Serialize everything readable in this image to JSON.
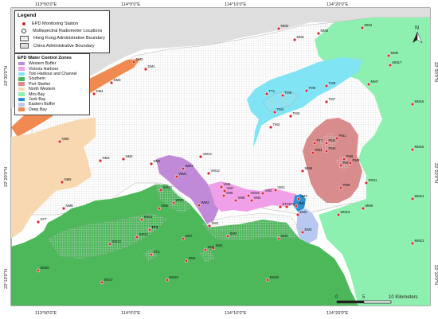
{
  "legend": {
    "title": "Legend",
    "items": [
      {
        "label": "EPD Monitoring Station",
        "symbol": "red-dot"
      },
      {
        "label": "Multispectral Radiometer Locations",
        "symbol": "white-ring"
      },
      {
        "label": "Hong Kong Administrative Boundary",
        "symbol": "hatched-box"
      },
      {
        "label": "China Administrative Boundary",
        "symbol": "grey-box"
      }
    ]
  },
  "zones_legend": {
    "title": "EPD Water Control Zones",
    "zones": [
      {
        "label": "Western Buffer",
        "color": "#c08ad8"
      },
      {
        "label": "Victoria Harbour",
        "color": "#f0a0e8"
      },
      {
        "label": "Tolo Harbour and Channel",
        "color": "#80e4f4"
      },
      {
        "label": "Southern",
        "color": "#4cb85a"
      },
      {
        "label": "Port Shelter",
        "color": "#d98c8c"
      },
      {
        "label": "North Western",
        "color": "#f8d8b0"
      },
      {
        "label": "Mirs Bay",
        "color": "#8df0b0"
      },
      {
        "label": "Junk Bay",
        "color": "#2f8fd0"
      },
      {
        "label": "Eastern Buffer",
        "color": "#b8c8f0"
      },
      {
        "label": "Deep Bay",
        "color": "#f08a50"
      }
    ]
  },
  "colors": {
    "station": "#d8232a",
    "land": "#ffffff",
    "grid": "#d6d6d6",
    "china": "#dedede"
  },
  "axes": {
    "top": [
      "113°50'0\"E",
      "114°0'0\"E",
      "114°10'0\"E",
      "114°20'0\"E"
    ],
    "bottom": [
      "113°50'0\"E",
      "114°0'0\"E",
      "114°10'0\"E",
      "114°20'0\"E"
    ],
    "left": [
      "22°30'0\"N",
      "22°20'0\"N",
      "22°10'0\"N"
    ],
    "right": [
      "22°30'0\"N",
      "22°20'0\"N",
      "22°10'0\"N"
    ]
  },
  "north_arrow": "N",
  "scale_bar": {
    "labels": [
      "0",
      "5",
      "10 Kilometers"
    ]
  },
  "stations": [
    {
      "label": "DM1"
    },
    {
      "label": "DM2"
    },
    {
      "label": "DM3"
    },
    {
      "label": "DM4"
    },
    {
      "label": "DM5"
    },
    {
      "label": "NM1"
    },
    {
      "label": "NM2"
    },
    {
      "label": "NM3"
    },
    {
      "label": "NM5"
    },
    {
      "label": "NM6"
    },
    {
      "label": "NM8"
    },
    {
      "label": "NT7"
    },
    {
      "label": "MM1"
    },
    {
      "label": "MM2"
    },
    {
      "label": "MM3"
    },
    {
      "label": "MM4"
    },
    {
      "label": "MM5"
    },
    {
      "label": "MM6"
    },
    {
      "label": "MM7"
    },
    {
      "label": "MM8"
    },
    {
      "label": "MM13"
    },
    {
      "label": "MM14"
    },
    {
      "label": "MM15"
    },
    {
      "label": "MM16"
    },
    {
      "label": "MM17"
    },
    {
      "label": "MM19"
    },
    {
      "label": "TM2"
    },
    {
      "label": "TM3"
    },
    {
      "label": "TM4"
    },
    {
      "label": "TM6"
    },
    {
      "label": "TM7"
    },
    {
      "label": "TM8"
    },
    {
      "label": "TT1"
    },
    {
      "label": "TT3"
    },
    {
      "label": "TM5"
    },
    {
      "label": "PM1"
    },
    {
      "label": "PM2"
    },
    {
      "label": "PM3"
    },
    {
      "label": "PM4"
    },
    {
      "label": "PM6"
    },
    {
      "label": "PM7"
    },
    {
      "label": "PM8"
    },
    {
      "label": "PM9"
    },
    {
      "label": "PM11"
    },
    {
      "label": "PT7"
    },
    {
      "label": "WM1"
    },
    {
      "label": "WM2"
    },
    {
      "label": "WM3"
    },
    {
      "label": "WM4"
    },
    {
      "label": "VM1"
    },
    {
      "label": "VM2"
    },
    {
      "label": "VM4"
    },
    {
      "label": "VM5"
    },
    {
      "label": "VM6"
    },
    {
      "label": "VM7"
    },
    {
      "label": "VM8"
    },
    {
      "label": "VM12"
    },
    {
      "label": "VM14"
    },
    {
      "label": "VM15"
    },
    {
      "label": "JM3"
    },
    {
      "label": "JM4"
    },
    {
      "label": "ET1"
    },
    {
      "label": "ET2"
    },
    {
      "label": "EM2"
    },
    {
      "label": "EM3"
    },
    {
      "label": "SM1"
    },
    {
      "label": "SM2"
    },
    {
      "label": "SM3"
    },
    {
      "label": "SM4"
    },
    {
      "label": "SM5"
    },
    {
      "label": "SM6"
    },
    {
      "label": "SM7"
    },
    {
      "label": "SM9"
    },
    {
      "label": "SM10"
    },
    {
      "label": "SM11"
    },
    {
      "label": "SM12"
    },
    {
      "label": "SM13"
    },
    {
      "label": "SM17"
    },
    {
      "label": "SM18"
    },
    {
      "label": "SM19"
    },
    {
      "label": "SM20"
    },
    {
      "label": "ST1"
    },
    {
      "label": "ST3"
    }
  ]
}
